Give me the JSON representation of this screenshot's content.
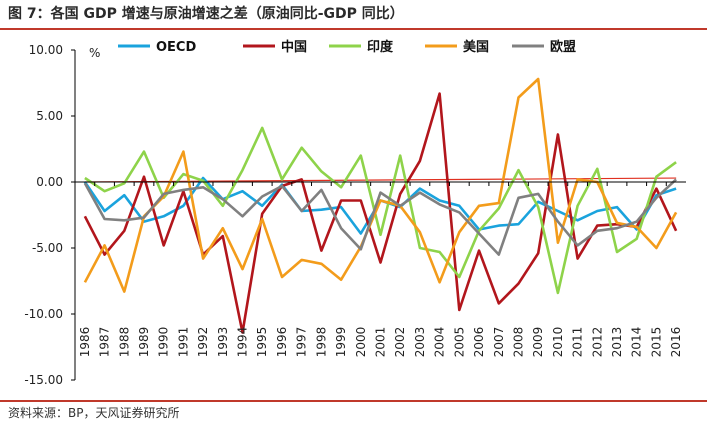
{
  "figure": {
    "title": "图 7：各国 GDP 增速与原油增速之差（原油同比-GDP 同比）",
    "source": "资料来源：BP，天风证券研究所"
  },
  "chart_data": {
    "type": "line",
    "title": "图 7：各国 GDP 增速与原油增速之差（原油同比-GDP 同比）",
    "ylabel": "%",
    "ylim": [
      -15,
      10
    ],
    "yticks": [
      {
        "value": 10,
        "label": "10.00"
      },
      {
        "value": 5,
        "label": "5.00"
      },
      {
        "value": 0,
        "label": "0.00"
      },
      {
        "value": -5,
        "label": "-5.00"
      },
      {
        "value": -10,
        "label": "-10.00"
      },
      {
        "value": -15,
        "label": "-15.00"
      }
    ],
    "legend_position": "top",
    "categories": [
      "1986",
      "1987",
      "1988",
      "1989",
      "1990",
      "1991",
      "1992",
      "1993",
      "1994",
      "1995",
      "1996",
      "1997",
      "1998",
      "1999",
      "2000",
      "2001",
      "2002",
      "2003",
      "2004",
      "2005",
      "2006",
      "2007",
      "2008",
      "2009",
      "2010",
      "2011",
      "2012",
      "2013",
      "2014",
      "2015",
      "2016"
    ],
    "series": [
      {
        "name": "OECD",
        "color": "#1aa3dd",
        "values": [
          0.0,
          -2.2,
          -1.0,
          -3.0,
          -2.6,
          -1.8,
          0.3,
          -1.3,
          -0.7,
          -1.8,
          -0.2,
          -2.2,
          -2.1,
          -1.9,
          -3.9,
          -1.4,
          -1.9,
          -0.5,
          -1.4,
          -1.8,
          -3.6,
          -3.3,
          -3.2,
          -1.5,
          -2.2,
          -2.9,
          -2.2,
          -1.9,
          -3.6,
          -1.0,
          -0.5
        ]
      },
      {
        "name": "中国",
        "color": "#b2161c",
        "values": [
          -2.6,
          -5.5,
          -3.7,
          0.4,
          -4.8,
          -0.7,
          -5.5,
          -4.1,
          -11.4,
          -2.4,
          -0.3,
          0.2,
          -5.2,
          -1.4,
          -1.4,
          -6.1,
          -0.9,
          1.6,
          6.7,
          -9.7,
          -5.2,
          -9.2,
          -7.7,
          -5.4,
          3.6,
          -5.8,
          -3.3,
          -3.2,
          -3.4,
          -0.5,
          -3.7
        ]
      },
      {
        "name": "印度",
        "color": "#8ed34a",
        "values": [
          0.3,
          -0.7,
          -0.1,
          2.3,
          -1.2,
          0.6,
          0.1,
          -1.8,
          0.9,
          4.1,
          0.2,
          2.6,
          0.8,
          -0.4,
          2.0,
          -4.0,
          2.0,
          -5.0,
          -5.3,
          -7.2,
          -3.7,
          -2.0,
          0.9,
          -1.9,
          -8.4,
          -1.8,
          1.0,
          -5.3,
          -4.3,
          0.4,
          1.5
        ]
      },
      {
        "name": "美国",
        "color": "#f39c1b",
        "values": [
          -7.6,
          -4.8,
          -8.3,
          -2.6,
          -1.1,
          2.3,
          -5.8,
          -3.5,
          -6.6,
          -2.8,
          -7.2,
          -5.9,
          -6.2,
          -7.4,
          -4.9,
          -1.4,
          -1.8,
          -3.8,
          -7.6,
          -3.8,
          -1.8,
          -1.6,
          6.4,
          7.8,
          -4.6,
          0.2,
          0.0,
          -3.1,
          -3.4,
          -5.0,
          -2.3
        ]
      },
      {
        "name": "欧盟",
        "color": "#808080",
        "values": [
          -0.1,
          -2.8,
          -2.9,
          -2.7,
          -0.9,
          -0.6,
          -0.4,
          -1.3,
          -2.6,
          -1.1,
          -0.3,
          -2.2,
          -0.6,
          -3.5,
          -5.1,
          -0.8,
          -1.8,
          -0.8,
          -1.7,
          -2.3,
          -3.9,
          -5.5,
          -1.2,
          -0.9,
          -3.0,
          -4.8,
          -3.7,
          -3.5,
          -3.0,
          -1.2,
          0.2
        ]
      }
    ],
    "trendline": {
      "color": "#e03020",
      "start": 0.0,
      "end": 0.3
    }
  }
}
